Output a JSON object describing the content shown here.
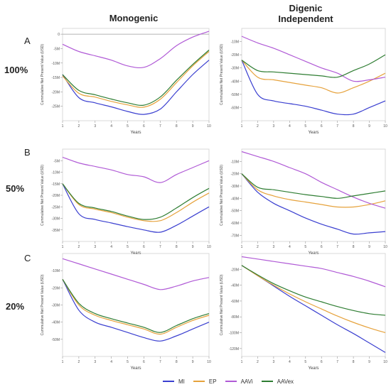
{
  "column_headers": {
    "left": "Monogenic",
    "right_line1": "Digenic",
    "right_line2": "Independent"
  },
  "rows": [
    {
      "letter": "A",
      "percent": "100%"
    },
    {
      "letter": "B",
      "percent": "50%"
    },
    {
      "letter": "C",
      "percent": "20%"
    }
  ],
  "legend": [
    {
      "label": "MI",
      "color": "#3a3fd0"
    },
    {
      "label": "EP",
      "color": "#e6a23c"
    },
    {
      "label": "AAVi",
      "color": "#b05ad6"
    },
    {
      "label": "AAVex",
      "color": "#2e7d32"
    }
  ],
  "chart_data": [
    {
      "id": "A-monogenic",
      "type": "line",
      "xlabel": "Years",
      "ylabel": "Cummulative Net Present Value (USD)",
      "xlim": [
        1,
        10
      ],
      "ylim": [
        -30,
        2
      ],
      "x_ticks": [
        1,
        2,
        3,
        4,
        5,
        6,
        7,
        8,
        9,
        10
      ],
      "y_ticks": [
        0,
        -5,
        -10,
        -15,
        -20,
        -25
      ],
      "y_tick_labels": [
        "0",
        "-5M",
        "-10M",
        "-15M",
        "-20M",
        "-25M"
      ],
      "zero_line": true,
      "x": [
        1,
        2,
        3,
        4,
        5,
        6,
        7,
        8,
        9,
        10
      ],
      "series": [
        {
          "name": "MI",
          "color": "#3a3fd0",
          "values": [
            -14,
            -22,
            -23.8,
            -25.2,
            -26.8,
            -27.8,
            -26,
            -20,
            -14,
            -9
          ]
        },
        {
          "name": "EP",
          "color": "#e6a23c",
          "values": [
            -14.5,
            -20.5,
            -21.8,
            -23.3,
            -24.5,
            -25.3,
            -22.6,
            -16.8,
            -11,
            -6
          ]
        },
        {
          "name": "AAVi",
          "color": "#b05ad6",
          "values": [
            -3.5,
            -6,
            -7.5,
            -9,
            -11,
            -11.5,
            -8.5,
            -4,
            -1,
            1
          ]
        },
        {
          "name": "AAVex",
          "color": "#2e7d32",
          "values": [
            -14,
            -19.5,
            -21,
            -22.5,
            -23.8,
            -24.6,
            -21.8,
            -16,
            -10.5,
            -5.5
          ]
        }
      ]
    },
    {
      "id": "A-digenic",
      "type": "line",
      "xlabel": "Years",
      "ylabel": "Cummulative Net Present Value (USD)",
      "xlim": [
        1,
        10
      ],
      "ylim": [
        -70,
        0
      ],
      "x_ticks": [
        1,
        2,
        3,
        4,
        5,
        6,
        7,
        8,
        9,
        10
      ],
      "y_ticks": [
        -10,
        -20,
        -30,
        -40,
        -50,
        -60
      ],
      "y_tick_labels": [
        "-10M",
        "-20M",
        "-30M",
        "-40M",
        "-50M",
        "-60M"
      ],
      "zero_line": false,
      "x": [
        1,
        2,
        3,
        4,
        5,
        6,
        7,
        8,
        9,
        10
      ],
      "series": [
        {
          "name": "MI",
          "color": "#3a3fd0",
          "values": [
            -24,
            -50,
            -55,
            -57,
            -59,
            -62,
            -65,
            -65,
            -60,
            -55
          ]
        },
        {
          "name": "EP",
          "color": "#e6a23c",
          "values": [
            -24,
            -37,
            -39,
            -41,
            -43,
            -45,
            -49,
            -45,
            -40,
            -34
          ]
        },
        {
          "name": "AAVi",
          "color": "#b05ad6",
          "values": [
            -6,
            -11,
            -15,
            -20,
            -25,
            -30,
            -34,
            -40,
            -39,
            -37
          ]
        },
        {
          "name": "AAVex",
          "color": "#2e7d32",
          "values": [
            -24,
            -32,
            -33,
            -34,
            -35,
            -36,
            -37,
            -32,
            -27,
            -20
          ]
        }
      ]
    },
    {
      "id": "B-monogenic",
      "type": "line",
      "xlabel": "Years",
      "ylabel": "Cummulative Net Present Value (USD)",
      "xlim": [
        1,
        10
      ],
      "ylim": [
        -40,
        0
      ],
      "x_ticks": [
        1,
        2,
        3,
        4,
        5,
        6,
        7,
        8,
        9,
        10
      ],
      "y_ticks": [
        -5,
        -10,
        -15,
        -20,
        -25,
        -30,
        -35
      ],
      "y_tick_labels": [
        "-5M",
        "-10M",
        "-15M",
        "-20M",
        "-25M",
        "-30M",
        "-35M"
      ],
      "zero_line": false,
      "x": [
        1,
        2,
        3,
        4,
        5,
        6,
        7,
        8,
        9,
        10
      ],
      "series": [
        {
          "name": "MI",
          "color": "#3a3fd0",
          "values": [
            -15,
            -28,
            -30.5,
            -32,
            -33.6,
            -35,
            -36,
            -33,
            -29,
            -25
          ]
        },
        {
          "name": "EP",
          "color": "#e6a23c",
          "values": [
            -15,
            -24,
            -26,
            -27.5,
            -29.5,
            -31,
            -31,
            -27.5,
            -23,
            -19
          ]
        },
        {
          "name": "AAVi",
          "color": "#b05ad6",
          "values": [
            -3.5,
            -6,
            -7.5,
            -9,
            -11,
            -12,
            -14.5,
            -11,
            -8,
            -5
          ]
        },
        {
          "name": "AAVex",
          "color": "#2e7d32",
          "values": [
            -15,
            -23.5,
            -25.5,
            -27,
            -29,
            -30.5,
            -29.5,
            -25.5,
            -21,
            -17
          ]
        }
      ]
    },
    {
      "id": "B-digenic",
      "type": "line",
      "xlabel": "Years",
      "ylabel": "Cummulative Net Present Value (USD)",
      "xlim": [
        1,
        10
      ],
      "ylim": [
        -75,
        0
      ],
      "x_ticks": [
        1,
        2,
        3,
        4,
        5,
        6,
        7,
        8,
        9,
        10
      ],
      "y_ticks": [
        -10,
        -20,
        -30,
        -40,
        -50,
        -60,
        -70
      ],
      "y_tick_labels": [
        "-10M",
        "-20M",
        "-30M",
        "-40M",
        "-50M",
        "-60M",
        "-70M"
      ],
      "zero_line": false,
      "x": [
        1,
        2,
        3,
        4,
        5,
        6,
        7,
        8,
        9,
        10
      ],
      "series": [
        {
          "name": "MI",
          "color": "#3a3fd0",
          "values": [
            -20,
            -35,
            -44,
            -50,
            -56,
            -61,
            -65,
            -69,
            -68,
            -67
          ]
        },
        {
          "name": "EP",
          "color": "#e6a23c",
          "values": [
            -20,
            -33,
            -38,
            -41,
            -43,
            -45,
            -47,
            -47,
            -45,
            -42
          ]
        },
        {
          "name": "AAVi",
          "color": "#b05ad6",
          "values": [
            -2,
            -6,
            -10,
            -15,
            -20,
            -27,
            -33,
            -39,
            -44,
            -48
          ]
        },
        {
          "name": "AAVex",
          "color": "#2e7d32",
          "values": [
            -20,
            -31,
            -33,
            -35,
            -37,
            -38.5,
            -40,
            -38,
            -36,
            -34
          ]
        }
      ]
    },
    {
      "id": "C-monogenic",
      "type": "line",
      "xlabel": "Years",
      "ylabel": "Cummulative Net Present Value (USD)",
      "xlim": [
        1,
        10
      ],
      "ylim": [
        -60,
        0
      ],
      "x_ticks": [
        1,
        2,
        3,
        4,
        5,
        6,
        7,
        8,
        9,
        10
      ],
      "y_ticks": [
        -10,
        -20,
        -30,
        -40,
        -50
      ],
      "y_tick_labels": [
        "-10M",
        "-20M",
        "-30M",
        "-40M",
        "-50M"
      ],
      "zero_line": false,
      "x": [
        1,
        2,
        3,
        4,
        5,
        6,
        7,
        8,
        9,
        10
      ],
      "series": [
        {
          "name": "MI",
          "color": "#3a3fd0",
          "values": [
            -15,
            -33,
            -40,
            -43,
            -46,
            -49,
            -51,
            -48,
            -44,
            -40
          ]
        },
        {
          "name": "EP",
          "color": "#e6a23c",
          "values": [
            -15,
            -30,
            -36,
            -39,
            -41.5,
            -44,
            -47,
            -43,
            -39,
            -36
          ]
        },
        {
          "name": "AAVi",
          "color": "#b05ad6",
          "values": [
            -3,
            -6,
            -9,
            -12,
            -15,
            -18,
            -21,
            -19,
            -16,
            -14
          ]
        },
        {
          "name": "AAVex",
          "color": "#2e7d32",
          "values": [
            -15,
            -29,
            -35,
            -38,
            -40.5,
            -43,
            -46,
            -42,
            -38,
            -35
          ]
        }
      ]
    },
    {
      "id": "C-digenic",
      "type": "line",
      "xlabel": "Years",
      "ylabel": "Cummulative Net Present Value (USD)",
      "xlim": [
        1,
        10
      ],
      "ylim": [
        -130,
        0
      ],
      "x_ticks": [
        1,
        2,
        3,
        4,
        5,
        6,
        7,
        8,
        9,
        10
      ],
      "y_ticks": [
        -20,
        -40,
        -60,
        -80,
        -100,
        -120
      ],
      "y_tick_labels": [
        "-20M",
        "-40M",
        "-60M",
        "-80M",
        "-100M",
        "-120M"
      ],
      "zero_line": false,
      "x": [
        1,
        2,
        3,
        4,
        5,
        6,
        7,
        8,
        9,
        10
      ],
      "series": [
        {
          "name": "MI",
          "color": "#3a3fd0",
          "values": [
            -15,
            -28,
            -41,
            -54,
            -66,
            -78,
            -90,
            -101,
            -113,
            -125
          ]
        },
        {
          "name": "EP",
          "color": "#e6a23c",
          "values": [
            -15,
            -28,
            -40,
            -51,
            -61,
            -70,
            -79,
            -87,
            -94,
            -100
          ]
        },
        {
          "name": "AAVi",
          "color": "#b05ad6",
          "values": [
            -4,
            -7,
            -10,
            -13,
            -16,
            -19,
            -24,
            -29,
            -35,
            -42
          ]
        },
        {
          "name": "AAVex",
          "color": "#2e7d32",
          "values": [
            -15,
            -27,
            -38,
            -47,
            -55,
            -61,
            -67,
            -72,
            -76,
            -78
          ]
        }
      ]
    }
  ]
}
